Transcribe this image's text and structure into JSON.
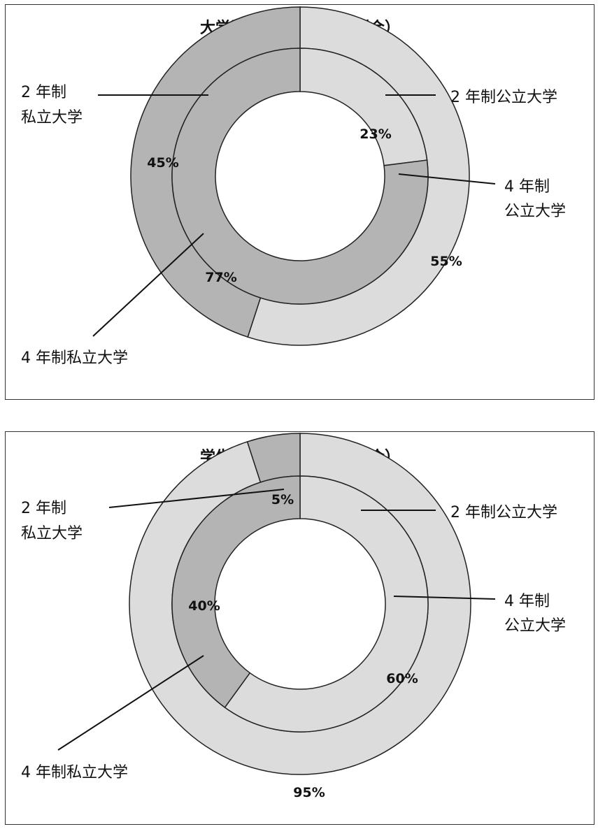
{
  "chart_data": [
    {
      "type": "donut",
      "title": "大学数（公立／私立の割合）",
      "rings": [
        {
          "name": "2年制",
          "position": "outer",
          "slices": [
            {
              "label": "2 年制公立大学",
              "value": 55,
              "value_label": "55%",
              "color": "#dcdcdc"
            },
            {
              "label": "2 年制私立大学",
              "value": 45,
              "value_label": "45%",
              "color": "#b4b4b4"
            }
          ]
        },
        {
          "name": "4年制",
          "position": "inner",
          "slices": [
            {
              "label": "4 年制公立大学",
              "value": 23,
              "value_label": "23%",
              "color": "#dcdcdc"
            },
            {
              "label": "4 年制私立大学",
              "value": 77,
              "value_label": "77%",
              "color": "#b4b4b4"
            }
          ]
        }
      ],
      "callouts": {
        "outer_public": "2 年制公立大学",
        "outer_private_line1": "2 年制",
        "outer_private_line2": "私立大学",
        "inner_public_line1": "4 年制",
        "inner_public_line2": "公立大学",
        "inner_private": "4 年制私立大学"
      }
    },
    {
      "type": "donut",
      "title": "学生数（公立／私立の割合）",
      "rings": [
        {
          "name": "2年制",
          "position": "outer",
          "slices": [
            {
              "label": "2 年制公立大学",
              "value": 95,
              "value_label": "95%",
              "color": "#dcdcdc"
            },
            {
              "label": "2 年制私立大学",
              "value": 5,
              "value_label": "5%",
              "color": "#b4b4b4"
            }
          ]
        },
        {
          "name": "4年制",
          "position": "inner",
          "slices": [
            {
              "label": "4 年制公立大学",
              "value": 60,
              "value_label": "60%",
              "color": "#dcdcdc"
            },
            {
              "label": "4 年制私立大学",
              "value": 40,
              "value_label": "40%",
              "color": "#b4b4b4"
            }
          ]
        }
      ],
      "callouts": {
        "outer_public": "2 年制公立大学",
        "outer_private_line1": "2 年制",
        "outer_private_line2": "私立大学",
        "inner_public_line1": "4 年制",
        "inner_public_line2": "公立大学",
        "inner_private": "4 年制私立大学"
      }
    }
  ]
}
